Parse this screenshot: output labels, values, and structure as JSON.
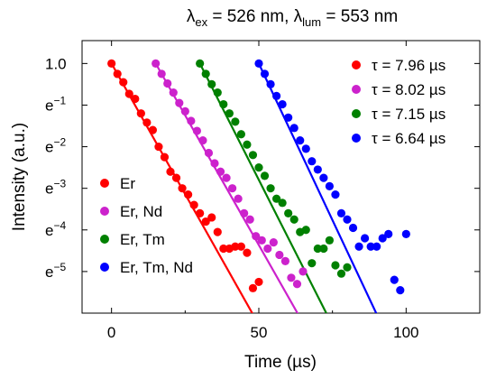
{
  "chart_data": {
    "type": "scatter",
    "title": "λex = 526 nm, λlum = 553 nm",
    "title_parts": {
      "lambda": "λ",
      "ex_sub": "ex",
      "ex_value": " = 526 nm, ",
      "lum_sub": "lum",
      "lum_value": " = 553 nm"
    },
    "xlabel": "Time (µs)",
    "ylabel": "Intensity (a.u.)",
    "xlim": [
      -10,
      125
    ],
    "ylim_ln": [
      -6.0,
      0.55
    ],
    "y_scale": "log (base e)",
    "x_ticks": [
      0,
      50,
      100
    ],
    "y_ticks": [
      {
        "ln": 0,
        "base": "1.0",
        "exp": ""
      },
      {
        "ln": -1,
        "base": "e",
        "exp": "−1"
      },
      {
        "ln": -2,
        "base": "e",
        "exp": "−2"
      },
      {
        "ln": -3,
        "base": "e",
        "exp": "−3"
      },
      {
        "ln": -4,
        "base": "e",
        "exp": "−4"
      },
      {
        "ln": -5,
        "base": "e",
        "exp": "−5"
      }
    ],
    "legend_tau_placement": "top-right",
    "legend_sample_placement": "bottom-left",
    "series": [
      {
        "name": "Er",
        "fit_label": "τ = 7.96 µs",
        "color": "#ff0000",
        "t0": 0,
        "tau": 7.96,
        "points": [
          [
            0,
            0.0
          ],
          [
            2,
            -0.25
          ],
          [
            4,
            -0.45
          ],
          [
            6,
            -0.73
          ],
          [
            8,
            -0.85
          ],
          [
            10,
            -1.2
          ],
          [
            12,
            -1.42
          ],
          [
            14,
            -1.6
          ],
          [
            16,
            -2.0
          ],
          [
            18,
            -2.25
          ],
          [
            20,
            -2.6
          ],
          [
            22,
            -2.75
          ],
          [
            24,
            -3.0
          ],
          [
            26,
            -3.15
          ],
          [
            28,
            -3.4
          ],
          [
            30,
            -3.6
          ],
          [
            32,
            -3.8
          ],
          [
            34,
            -3.7
          ],
          [
            36,
            -4.05
          ],
          [
            38,
            -4.45
          ],
          [
            40,
            -4.45
          ],
          [
            42,
            -4.4
          ],
          [
            44,
            -4.4
          ],
          [
            46,
            -4.55
          ],
          [
            48,
            -5.4
          ],
          [
            50,
            -5.25
          ]
        ]
      },
      {
        "name": "Er, Nd",
        "fit_label": "τ = 8.02 µs",
        "color": "#cc22cc",
        "t0": 15,
        "tau": 8.02,
        "points": [
          [
            15,
            0.0
          ],
          [
            17,
            -0.25
          ],
          [
            19,
            -0.48
          ],
          [
            21,
            -0.7
          ],
          [
            23,
            -0.95
          ],
          [
            25,
            -1.15
          ],
          [
            27,
            -1.38
          ],
          [
            29,
            -1.62
          ],
          [
            31,
            -1.85
          ],
          [
            33,
            -2.15
          ],
          [
            35,
            -2.4
          ],
          [
            37,
            -2.6
          ],
          [
            39,
            -2.75
          ],
          [
            41,
            -3.0
          ],
          [
            43,
            -3.25
          ],
          [
            45,
            -3.6
          ],
          [
            47,
            -3.75
          ],
          [
            49,
            -4.15
          ],
          [
            51,
            -4.25
          ],
          [
            53,
            -4.45
          ],
          [
            55,
            -4.3
          ],
          [
            57,
            -4.6
          ],
          [
            59,
            -4.75
          ],
          [
            61,
            -5.15
          ],
          [
            63,
            -5.3
          ],
          [
            65,
            -5.0
          ]
        ]
      },
      {
        "name": "Er, Tm",
        "fit_label": "τ = 7.15 µs",
        "color": "#008000",
        "t0": 30,
        "tau": 7.15,
        "points": [
          [
            30,
            0.0
          ],
          [
            32,
            -0.25
          ],
          [
            34,
            -0.5
          ],
          [
            36,
            -0.7
          ],
          [
            38,
            -0.98
          ],
          [
            40,
            -1.2
          ],
          [
            42,
            -1.4
          ],
          [
            44,
            -1.7
          ],
          [
            46,
            -1.95
          ],
          [
            48,
            -2.2
          ],
          [
            50,
            -2.5
          ],
          [
            52,
            -2.7
          ],
          [
            54,
            -3.0
          ],
          [
            56,
            -3.25
          ],
          [
            58,
            -3.35
          ],
          [
            60,
            -3.6
          ],
          [
            62,
            -3.75
          ],
          [
            64,
            -4.05
          ],
          [
            66,
            -4.0
          ],
          [
            68,
            -4.8
          ],
          [
            70,
            -4.45
          ],
          [
            72,
            -4.45
          ],
          [
            74,
            -4.25
          ],
          [
            76,
            -4.85
          ],
          [
            78,
            -5.05
          ],
          [
            80,
            -4.9
          ]
        ]
      },
      {
        "name": "Er, Tm, Nd",
        "fit_label": "τ = 6.64 µs",
        "color": "#0000ff",
        "t0": 50,
        "tau": 6.64,
        "points": [
          [
            50,
            0.0
          ],
          [
            52,
            -0.25
          ],
          [
            54,
            -0.5
          ],
          [
            56,
            -0.78
          ],
          [
            58,
            -0.98
          ],
          [
            60,
            -1.3
          ],
          [
            62,
            -1.55
          ],
          [
            64,
            -1.85
          ],
          [
            66,
            -2.05
          ],
          [
            68,
            -2.35
          ],
          [
            70,
            -2.55
          ],
          [
            72,
            -2.75
          ],
          [
            74,
            -2.95
          ],
          [
            76,
            -3.15
          ],
          [
            78,
            -3.6
          ],
          [
            80,
            -3.75
          ],
          [
            82,
            -3.95
          ],
          [
            84,
            -4.4
          ],
          [
            86,
            -4.2
          ],
          [
            88,
            -4.4
          ],
          [
            90,
            -4.4
          ],
          [
            92,
            -4.2
          ],
          [
            94,
            -4.1
          ],
          [
            96,
            -5.2
          ],
          [
            98,
            -5.45
          ],
          [
            100,
            -4.1
          ]
        ]
      }
    ]
  }
}
